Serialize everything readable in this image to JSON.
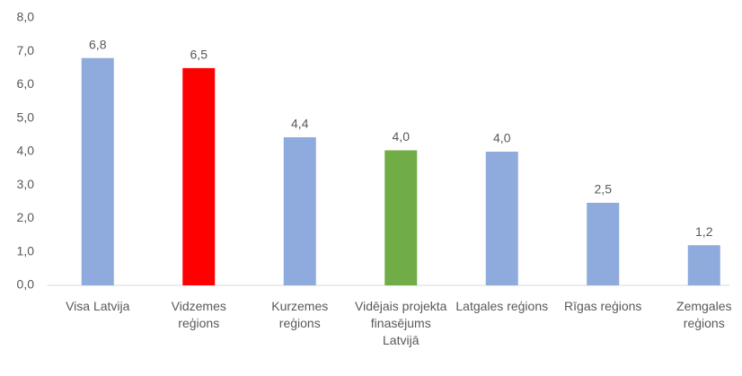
{
  "chart_data": {
    "type": "bar",
    "categories": [
      "Visa Latvija",
      "Vidzemes reģions",
      "Kurzemes reģions",
      "Vidējais projekta finasējums Latvijā",
      "Latgales reģions",
      "Rīgas reģions",
      "Zemgales reģions"
    ],
    "values": [
      6.8,
      6.5,
      4.43,
      4.04,
      4.0,
      2.47,
      1.2
    ],
    "value_labels": [
      "6,8",
      "6,5",
      "4,4",
      "4,0",
      "4,0",
      "2,5",
      "1,2"
    ],
    "colors": [
      "#8faadc",
      "#ff0000",
      "#8faadc",
      "#70ad47",
      "#8faadc",
      "#8faadc",
      "#8faadc"
    ],
    "ylim": [
      0,
      8
    ],
    "yticks": [
      {
        "value": 0,
        "label": "0,0"
      },
      {
        "value": 1,
        "label": "1,0"
      },
      {
        "value": 2,
        "label": "2,0"
      },
      {
        "value": 3,
        "label": "3,0"
      },
      {
        "value": 4,
        "label": "4,0"
      },
      {
        "value": 5,
        "label": "5,0"
      },
      {
        "value": 6,
        "label": "6,0"
      },
      {
        "value": 7,
        "label": "7,0"
      },
      {
        "value": 8,
        "label": "8,0"
      }
    ],
    "grid": false
  }
}
